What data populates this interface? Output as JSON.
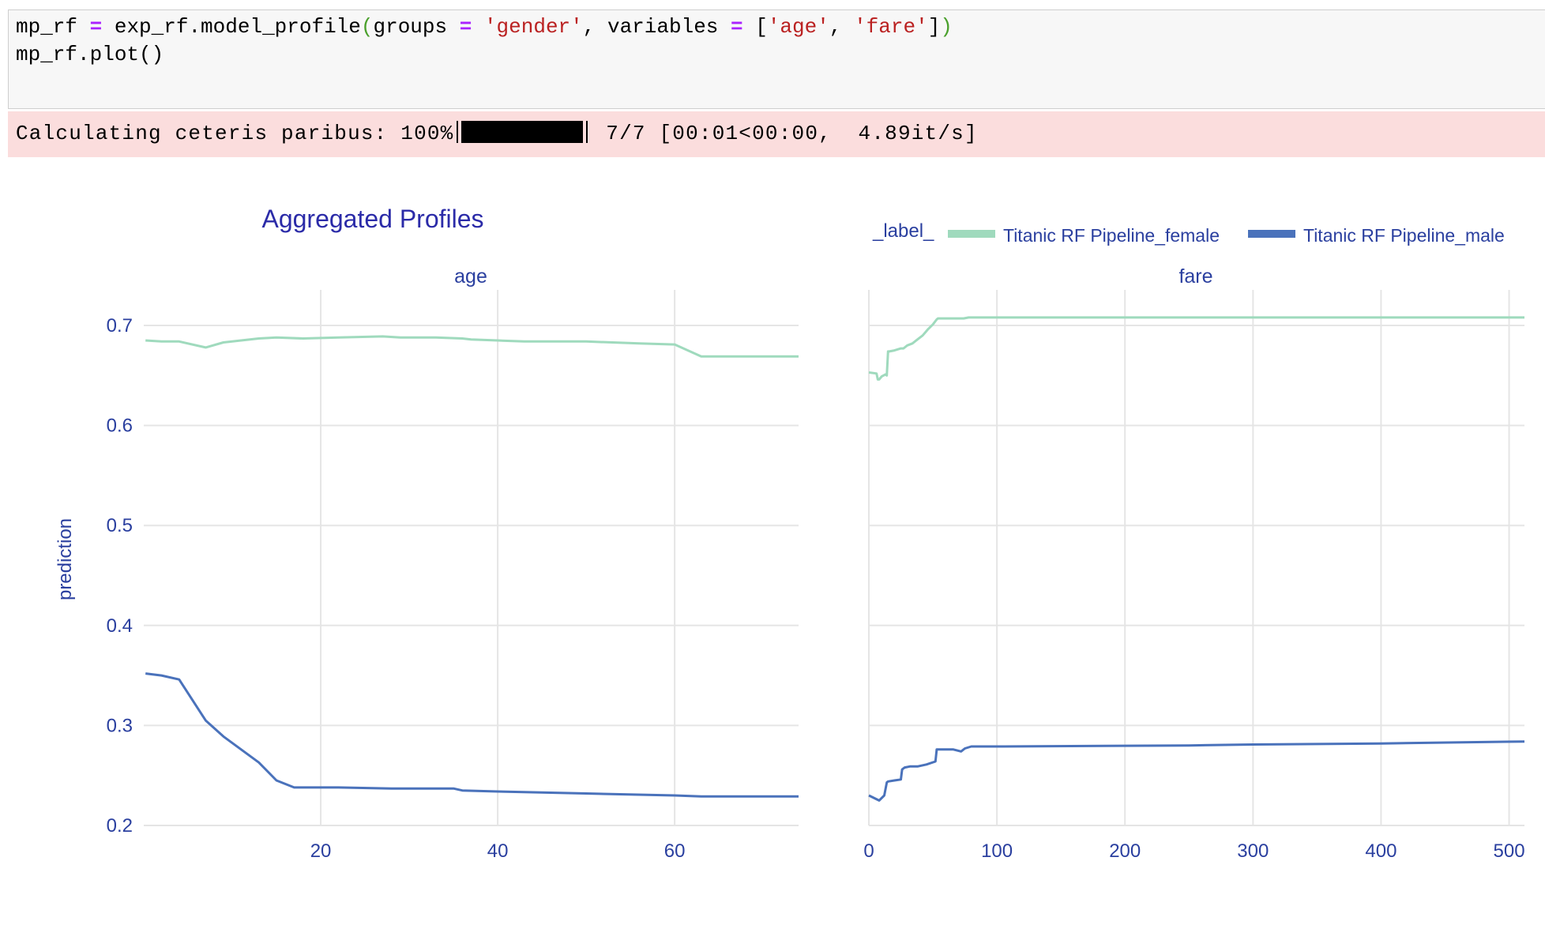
{
  "code": {
    "line1": [
      {
        "t": "mp_rf ",
        "c": ""
      },
      {
        "t": "=",
        "c": "tk-op"
      },
      {
        "t": " exp_rf.model_profile",
        "c": ""
      },
      {
        "t": "(",
        "c": "tk-par"
      },
      {
        "t": "groups ",
        "c": ""
      },
      {
        "t": "=",
        "c": "tk-op"
      },
      {
        "t": " ",
        "c": ""
      },
      {
        "t": "'gender'",
        "c": "tk-str"
      },
      {
        "t": ", variables ",
        "c": ""
      },
      {
        "t": "=",
        "c": "tk-op"
      },
      {
        "t": " [",
        "c": ""
      },
      {
        "t": "'age'",
        "c": "tk-str"
      },
      {
        "t": ", ",
        "c": ""
      },
      {
        "t": "'fare'",
        "c": "tk-str"
      },
      {
        "t": "]",
        "c": ""
      },
      {
        "t": ")",
        "c": "tk-par"
      }
    ],
    "line2": "mp_rf.plot()"
  },
  "progress": {
    "prefix": "Calculating ceteris paribus: 100%",
    "fraction": 1.0,
    "suffix": " 7/7 [00:01<00:00,  4.89it/s]"
  },
  "chart_data": {
    "type": "line",
    "title": "Aggregated Profiles",
    "ylabel": "prediction",
    "legend": {
      "title": "_label_",
      "placement": "top-right",
      "entries": [
        "Titanic RF Pipeline_female",
        "Titanic RF Pipeline_male"
      ]
    },
    "colors": {
      "female": "#9fdabd",
      "male": "#4a72bb",
      "grid": "#e5e5e5",
      "text": "#2a3f9f"
    },
    "ylim": [
      0.2,
      0.7
    ],
    "yticks": [
      0.2,
      0.3,
      0.4,
      0.5,
      0.6,
      0.7
    ],
    "grid": true,
    "panels": [
      {
        "name": "age",
        "xlim": [
          0,
          74
        ],
        "xticks": [
          20,
          40,
          60
        ],
        "series": [
          {
            "name": "Titanic RF Pipeline_female",
            "color": "#9fdabd",
            "x": [
              0.2,
              2,
              4,
              7,
              9,
              13,
              15,
              18,
              22,
              27,
              29,
              33,
              36,
              37,
              40,
              43,
              50,
              56,
              60,
              63,
              74
            ],
            "y": [
              0.685,
              0.684,
              0.684,
              0.678,
              0.683,
              0.687,
              0.688,
              0.687,
              0.688,
              0.689,
              0.688,
              0.688,
              0.687,
              0.686,
              0.685,
              0.684,
              0.684,
              0.682,
              0.681,
              0.669,
              0.669
            ]
          },
          {
            "name": "Titanic RF Pipeline_male",
            "color": "#4a72bb",
            "x": [
              0.2,
              2,
              4,
              7,
              9,
              13,
              15,
              17,
              22,
              28,
              35,
              36,
              40,
              50,
              60,
              63,
              74
            ],
            "y": [
              0.352,
              0.35,
              0.346,
              0.305,
              0.289,
              0.263,
              0.245,
              0.238,
              0.238,
              0.237,
              0.237,
              0.235,
              0.234,
              0.232,
              0.23,
              0.229,
              0.229
            ]
          }
        ]
      },
      {
        "name": "fare",
        "xlim": [
          0,
          512
        ],
        "xticks": [
          0,
          100,
          200,
          300,
          400,
          500
        ],
        "series": [
          {
            "name": "Titanic RF Pipeline_female",
            "color": "#9fdabd",
            "x": [
              0,
              6,
              7,
              8,
              10,
              13,
              14,
              15,
              16,
              20,
              25,
              27,
              30,
              34,
              38,
              42,
              46,
              50,
              53,
              54,
              55,
              62,
              74,
              78,
              82,
              95,
              512
            ],
            "y": [
              0.653,
              0.652,
              0.646,
              0.646,
              0.649,
              0.651,
              0.65,
              0.674,
              0.674,
              0.675,
              0.677,
              0.677,
              0.68,
              0.682,
              0.686,
              0.69,
              0.696,
              0.701,
              0.706,
              0.707,
              0.707,
              0.707,
              0.707,
              0.708,
              0.708,
              0.708,
              0.708
            ]
          },
          {
            "name": "Titanic RF Pipeline_male",
            "color": "#4a72bb",
            "x": [
              0,
              8,
              12,
              14,
              15,
              20,
              25,
              26,
              28,
              32,
              38,
              45,
              52,
              53,
              60,
              66,
              72,
              75,
              80,
              90,
              100,
              250,
              300,
              400,
              512
            ],
            "y": [
              0.23,
              0.225,
              0.23,
              0.243,
              0.244,
              0.245,
              0.246,
              0.256,
              0.258,
              0.259,
              0.259,
              0.261,
              0.264,
              0.276,
              0.276,
              0.276,
              0.274,
              0.277,
              0.279,
              0.279,
              0.279,
              0.28,
              0.281,
              0.282,
              0.284
            ]
          }
        ]
      }
    ]
  }
}
